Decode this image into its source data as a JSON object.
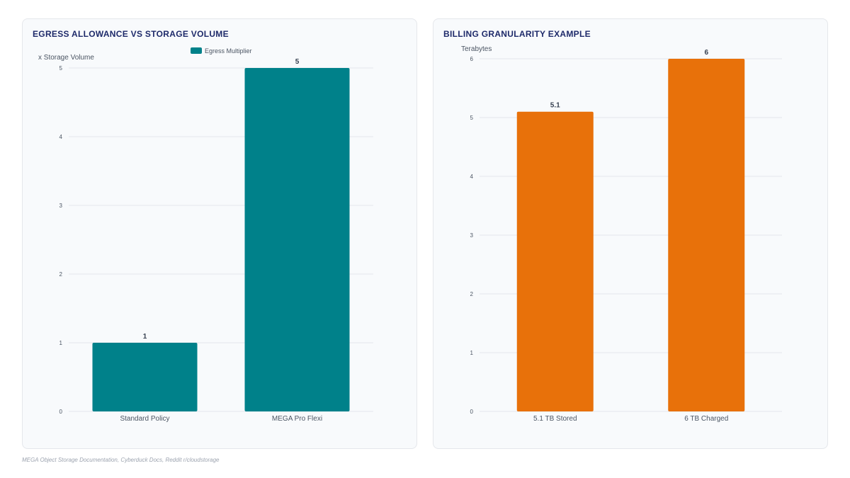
{
  "chart_data": [
    {
      "type": "bar",
      "title": "Egress Allowance vs Storage Volume",
      "ylabel": "x Storage Volume",
      "categories": [
        "Standard Policy",
        "MEGA Pro Flexi"
      ],
      "series": [
        {
          "name": "Egress Multiplier",
          "values": [
            1,
            5
          ]
        }
      ],
      "ylim": [
        0,
        5
      ],
      "yticks": [
        "0",
        "1",
        "2",
        "3",
        "4",
        "5"
      ],
      "data_labels": [
        "1",
        "5"
      ],
      "color": "#00818a",
      "legend": "top-center",
      "grid": true
    },
    {
      "type": "bar",
      "title": "Billing Granularity Example",
      "ylabel": "Terabytes",
      "categories": [
        "5.1 TB Stored",
        "6 TB Charged"
      ],
      "series": [
        {
          "values": [
            5.1,
            6
          ]
        }
      ],
      "ylim": [
        0,
        6
      ],
      "yticks": [
        "0",
        "1",
        "2",
        "3",
        "4",
        "5",
        "6"
      ],
      "data_labels": [
        "5.1",
        "6"
      ],
      "color": "#e8710a",
      "legend": "none",
      "grid": true
    }
  ],
  "footer": {
    "source": "MEGA Object Storage Documentation, Cyberduck Docs, Reddit r/cloudstorage"
  }
}
